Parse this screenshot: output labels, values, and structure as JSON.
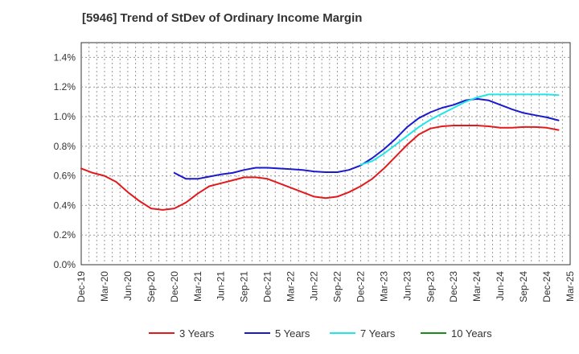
{
  "chart_data": {
    "type": "line",
    "title": "[5946]  Trend of StDev of Ordinary Income Margin",
    "xlabel": "",
    "ylabel": "",
    "x_ticks": [
      "Dec-19",
      "Mar-20",
      "Jun-20",
      "Sep-20",
      "Dec-20",
      "Mar-21",
      "Jun-21",
      "Sep-21",
      "Dec-21",
      "Mar-22",
      "Jun-22",
      "Sep-22",
      "Dec-22",
      "Mar-23",
      "Jun-23",
      "Sep-23",
      "Dec-23",
      "Mar-24",
      "Jun-24",
      "Sep-24",
      "Dec-24",
      "Mar-25"
    ],
    "y_ticks": [
      "0.0%",
      "0.2%",
      "0.4%",
      "0.6%",
      "0.8%",
      "1.0%",
      "1.2%",
      "1.4%"
    ],
    "ylim": [
      0,
      1.5
    ],
    "y_unit": "%",
    "grid": true,
    "legend_position": "bottom",
    "series": [
      {
        "name": "3 Years",
        "color": "#e31a1c",
        "values": [
          0.65,
          0.62,
          0.6,
          0.56,
          0.49,
          0.43,
          0.38,
          0.37,
          0.38,
          0.42,
          0.48,
          0.53,
          0.55,
          0.57,
          0.59,
          0.59,
          0.58,
          0.55,
          0.52,
          0.49,
          0.46,
          0.45,
          0.46,
          0.49,
          0.53,
          0.58,
          0.65,
          0.73,
          0.81,
          0.88,
          0.92,
          0.935,
          0.94,
          0.94,
          0.94,
          0.935,
          0.925,
          0.925,
          0.93,
          0.93,
          0.925,
          0.91
        ]
      },
      {
        "name": "5 Years",
        "color": "#1a1acc",
        "values": [
          null,
          null,
          null,
          null,
          null,
          null,
          null,
          null,
          0.62,
          0.58,
          0.58,
          0.595,
          0.61,
          0.62,
          0.64,
          0.655,
          0.655,
          0.65,
          0.645,
          0.64,
          0.63,
          0.625,
          0.625,
          0.64,
          0.67,
          0.72,
          0.78,
          0.85,
          0.93,
          0.99,
          1.03,
          1.06,
          1.08,
          1.11,
          1.12,
          1.11,
          1.08,
          1.05,
          1.025,
          1.01,
          0.995,
          0.975
        ]
      },
      {
        "name": "7 Years",
        "color": "#22e5e5",
        "values": [
          null,
          null,
          null,
          null,
          null,
          null,
          null,
          null,
          null,
          null,
          null,
          null,
          null,
          null,
          null,
          null,
          null,
          null,
          null,
          null,
          null,
          null,
          null,
          null,
          0.675,
          0.7,
          0.75,
          0.81,
          0.87,
          0.93,
          0.98,
          1.02,
          1.06,
          1.1,
          1.13,
          1.15,
          1.15,
          1.15,
          1.15,
          1.15,
          1.15,
          1.145
        ]
      },
      {
        "name": "10 Years",
        "color": "#1a8c1a",
        "values": []
      }
    ]
  }
}
